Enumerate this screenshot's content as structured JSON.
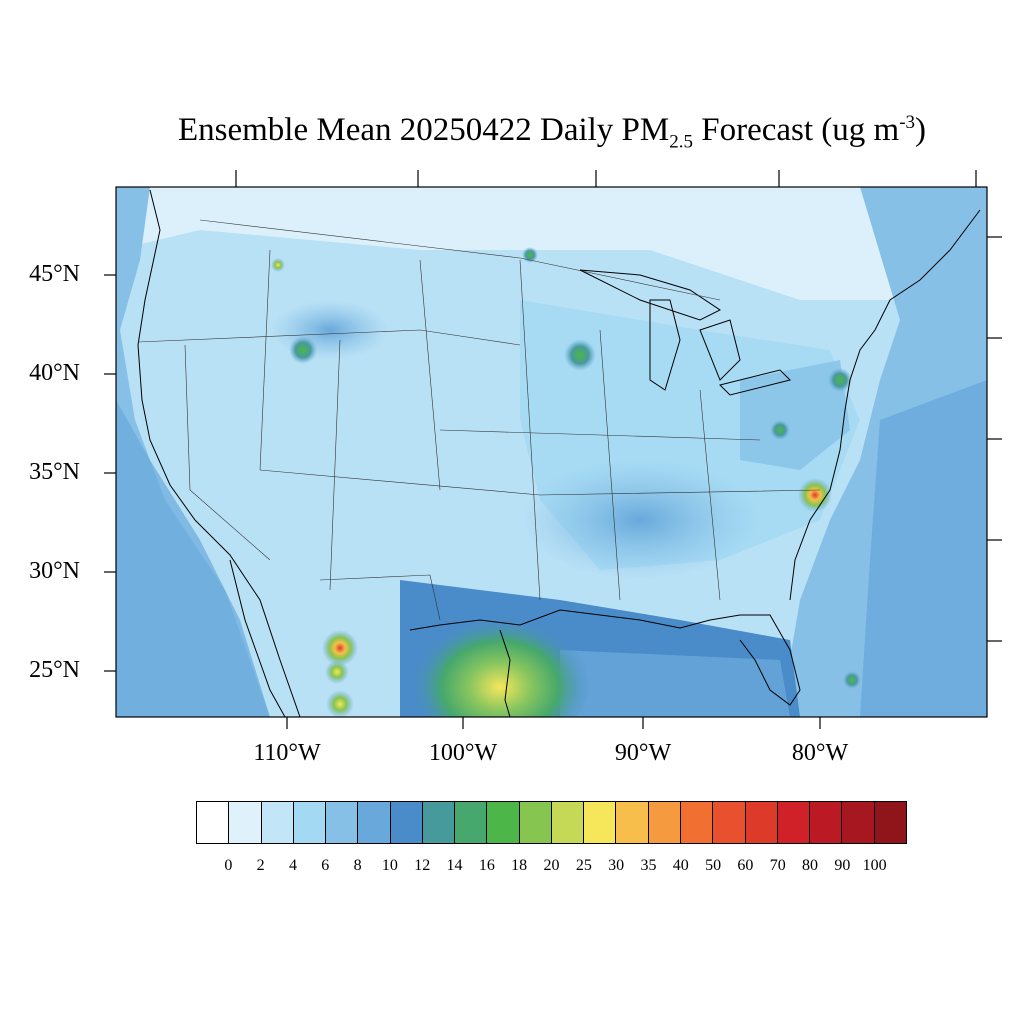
{
  "title": {
    "main": "Ensemble Mean 20250422 Daily PM",
    "subscript": "2.5",
    "after": " Forecast (ug m",
    "superscript": "-3",
    "close": ")"
  },
  "lat_labels": [
    "45°N",
    "40°N",
    "35°N",
    "30°N",
    "25°N"
  ],
  "lon_labels": [
    "110°W",
    "100°W",
    "90°W",
    "80°W"
  ],
  "legend": {
    "colors": [
      "#ffffff",
      "#dff1fb",
      "#c2e6f8",
      "#a3d9f3",
      "#86c0e6",
      "#68a8db",
      "#4a8cc9",
      "#479a9c",
      "#46a86c",
      "#4db649",
      "#86c54f",
      "#c6d957",
      "#f6e65a",
      "#f7be4b",
      "#f59a3f",
      "#f26f32",
      "#e9502d",
      "#de3a29",
      "#d12128",
      "#bb1a24",
      "#a6171f",
      "#8f151b"
    ],
    "ticks": [
      "0",
      "2",
      "4",
      "6",
      "8",
      "10",
      "12",
      "14",
      "16",
      "18",
      "20",
      "25",
      "30",
      "35",
      "40",
      "50",
      "60",
      "70",
      "80",
      "90",
      "100"
    ]
  },
  "map": {
    "background_color": "#b9e1f6",
    "ocean_color": "#7fb7e2"
  }
}
